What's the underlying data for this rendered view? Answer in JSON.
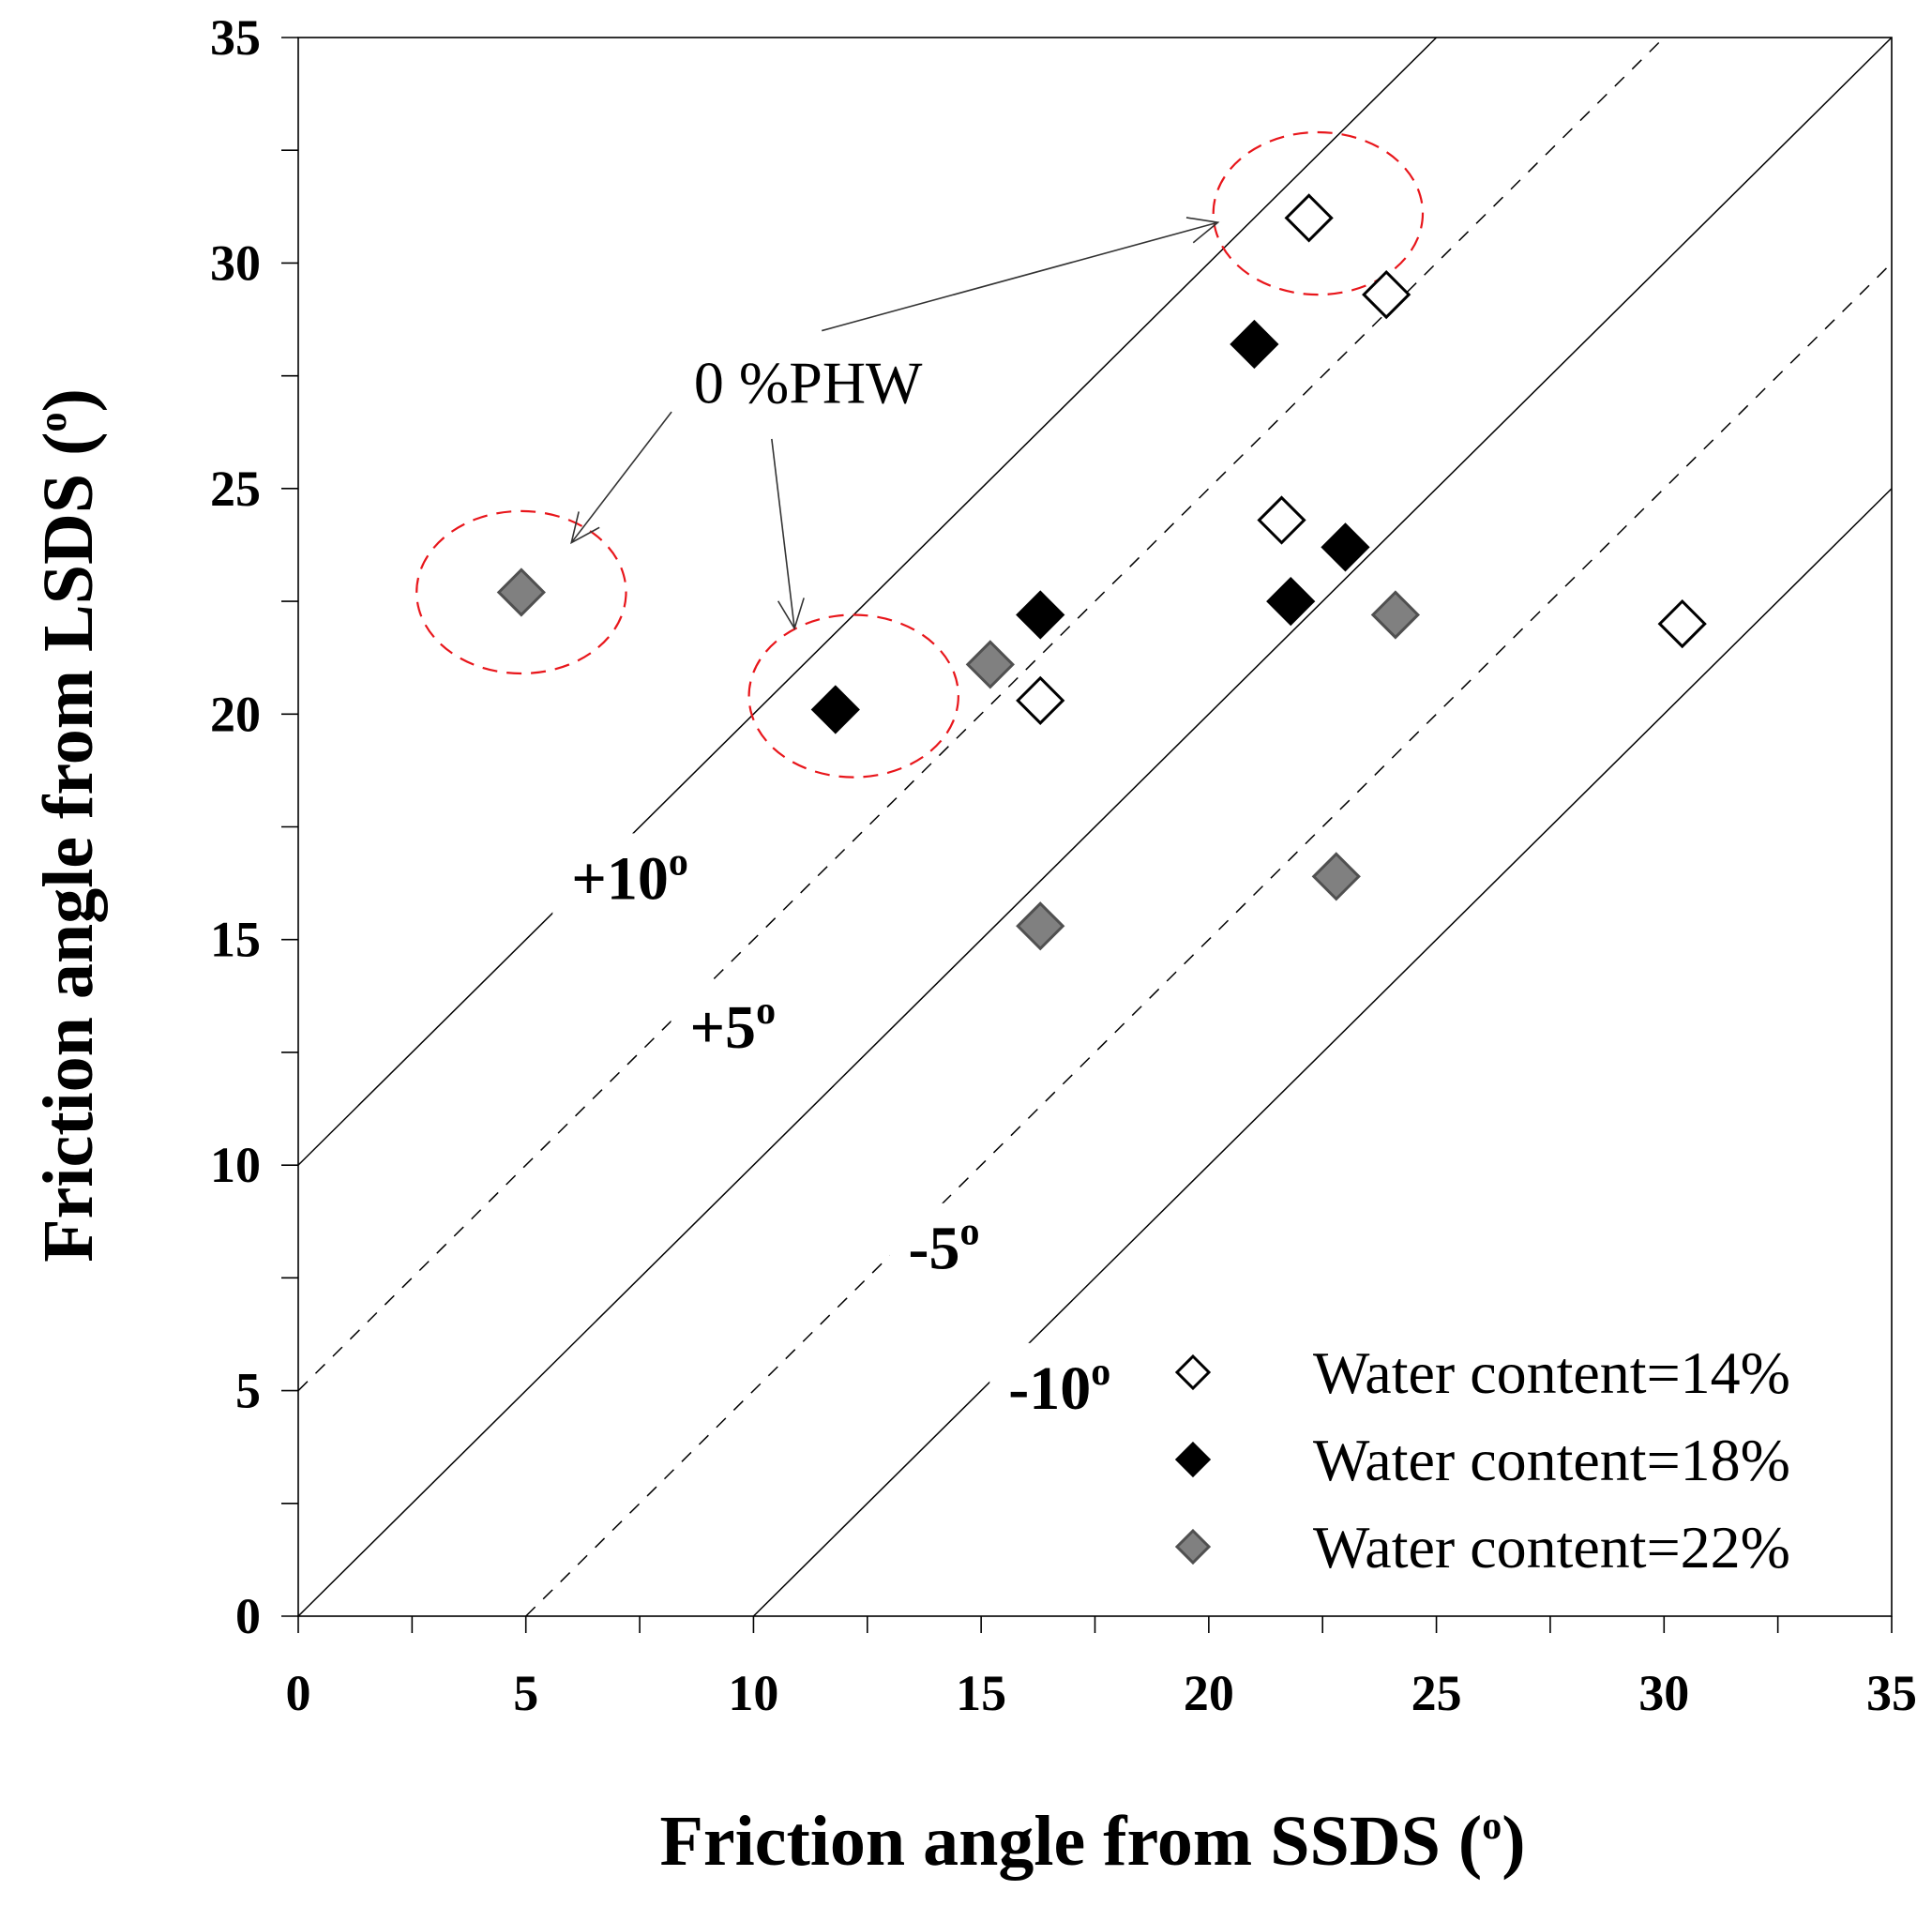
{
  "chart_data": {
    "type": "scatter",
    "title": "",
    "xlabel": "Friction angle from SSDS (o)",
    "ylabel": "Friction angle from LSDS (o)",
    "xlabel_main": "Friction angle from SSDS (",
    "ylabel_main": "Friction angle from LSDS (",
    "label_sup": "o",
    "label_close": ")",
    "xlim": [
      0,
      35
    ],
    "ylim": [
      0,
      35
    ],
    "xticks": [
      0,
      5,
      10,
      15,
      20,
      25,
      30,
      35
    ],
    "yticks": [
      0,
      5,
      10,
      15,
      20,
      25,
      30,
      35
    ],
    "minor_step": 2.5,
    "grid": false,
    "legend_position": "bottom-right",
    "series": [
      {
        "name": "Water content=14%",
        "marker": "diamond-open",
        "color": "#ffffff",
        "edge": "#000000",
        "points": [
          [
            22.2,
            31.0
          ],
          [
            23.9,
            29.3
          ],
          [
            21.6,
            24.3
          ],
          [
            16.3,
            20.3
          ],
          [
            30.4,
            22.0
          ]
        ]
      },
      {
        "name": "Water content=18%",
        "marker": "diamond-filled",
        "color": "#000000",
        "edge": "#000000",
        "points": [
          [
            21.0,
            28.2
          ],
          [
            16.3,
            22.2
          ],
          [
            11.8,
            20.1
          ],
          [
            21.8,
            22.5
          ],
          [
            23.0,
            23.7
          ]
        ]
      },
      {
        "name": "Water content=22%",
        "marker": "diamond-filled",
        "color": "#808080",
        "edge": "#505050",
        "points": [
          [
            4.9,
            22.7
          ],
          [
            15.2,
            21.1
          ],
          [
            16.3,
            15.3
          ],
          [
            24.1,
            22.2
          ],
          [
            22.8,
            16.4
          ]
        ]
      }
    ],
    "reference_lines": [
      {
        "offset": 10,
        "style": "solid",
        "label": "+10",
        "label_sup": "o",
        "label_at": [
          6.0,
          15.9
        ]
      },
      {
        "offset": 5,
        "style": "dashed",
        "label": "+5",
        "label_sup": "o",
        "label_at": [
          8.6,
          12.6
        ]
      },
      {
        "offset": 0,
        "style": "solid",
        "label": "",
        "label_sup": "",
        "label_at": [
          0,
          0
        ]
      },
      {
        "offset": -5,
        "style": "dashed",
        "label": "-5",
        "label_sup": "o",
        "label_at": [
          13.4,
          7.7
        ]
      },
      {
        "offset": -10,
        "style": "solid",
        "label": "-10",
        "label_sup": "o",
        "label_at": [
          15.6,
          4.6
        ]
      }
    ],
    "annotation": {
      "text": "0 %PHW",
      "text_at": [
        11.2,
        26.9
      ],
      "highlight_circles": [
        {
          "center": [
            4.9,
            22.7
          ],
          "rx": 2.3,
          "ry": 1.8
        },
        {
          "center": [
            12.2,
            20.4
          ],
          "rx": 2.3,
          "ry": 1.8
        },
        {
          "center": [
            22.4,
            31.1
          ],
          "rx": 2.3,
          "ry": 1.8
        }
      ],
      "arrows": [
        {
          "from": [
            11.5,
            28.5
          ],
          "to": [
            20.2,
            30.9
          ]
        },
        {
          "from": [
            8.2,
            26.7
          ],
          "to": [
            6.0,
            23.8
          ]
        },
        {
          "from": [
            10.4,
            26.1
          ],
          "to": [
            10.9,
            21.9
          ]
        }
      ]
    }
  }
}
